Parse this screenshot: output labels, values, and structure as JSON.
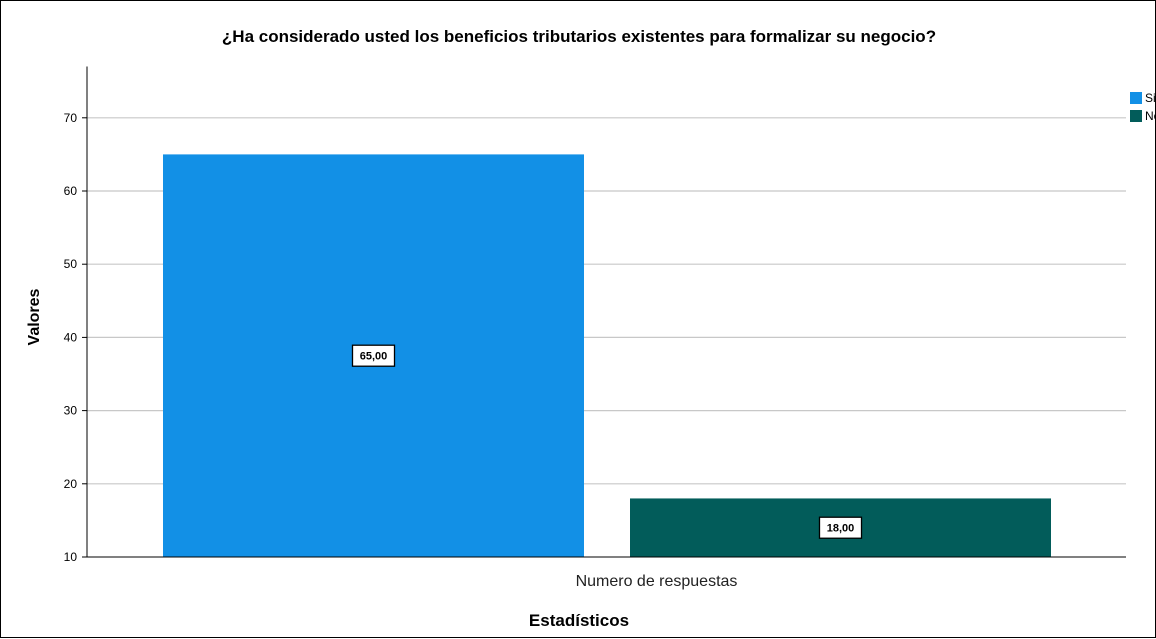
{
  "chart_data": {
    "type": "bar",
    "title": "¿Ha considerado usted los beneficios tributarios existentes para formalizar su negocio?",
    "xlabel": "Estadísticos",
    "ylabel": "Valores",
    "categories": [
      "Numero de respuestas"
    ],
    "series": [
      {
        "name": "Si",
        "values": [
          65
        ],
        "label": "65,00",
        "color": "#1290e6"
      },
      {
        "name": "No",
        "values": [
          18
        ],
        "label": "18,00",
        "color": "#025c5a"
      }
    ],
    "ylim": [
      10,
      77
    ],
    "yticks": [
      10,
      20,
      30,
      40,
      50,
      60,
      70
    ],
    "grid": true,
    "legend_position": "top-right"
  }
}
